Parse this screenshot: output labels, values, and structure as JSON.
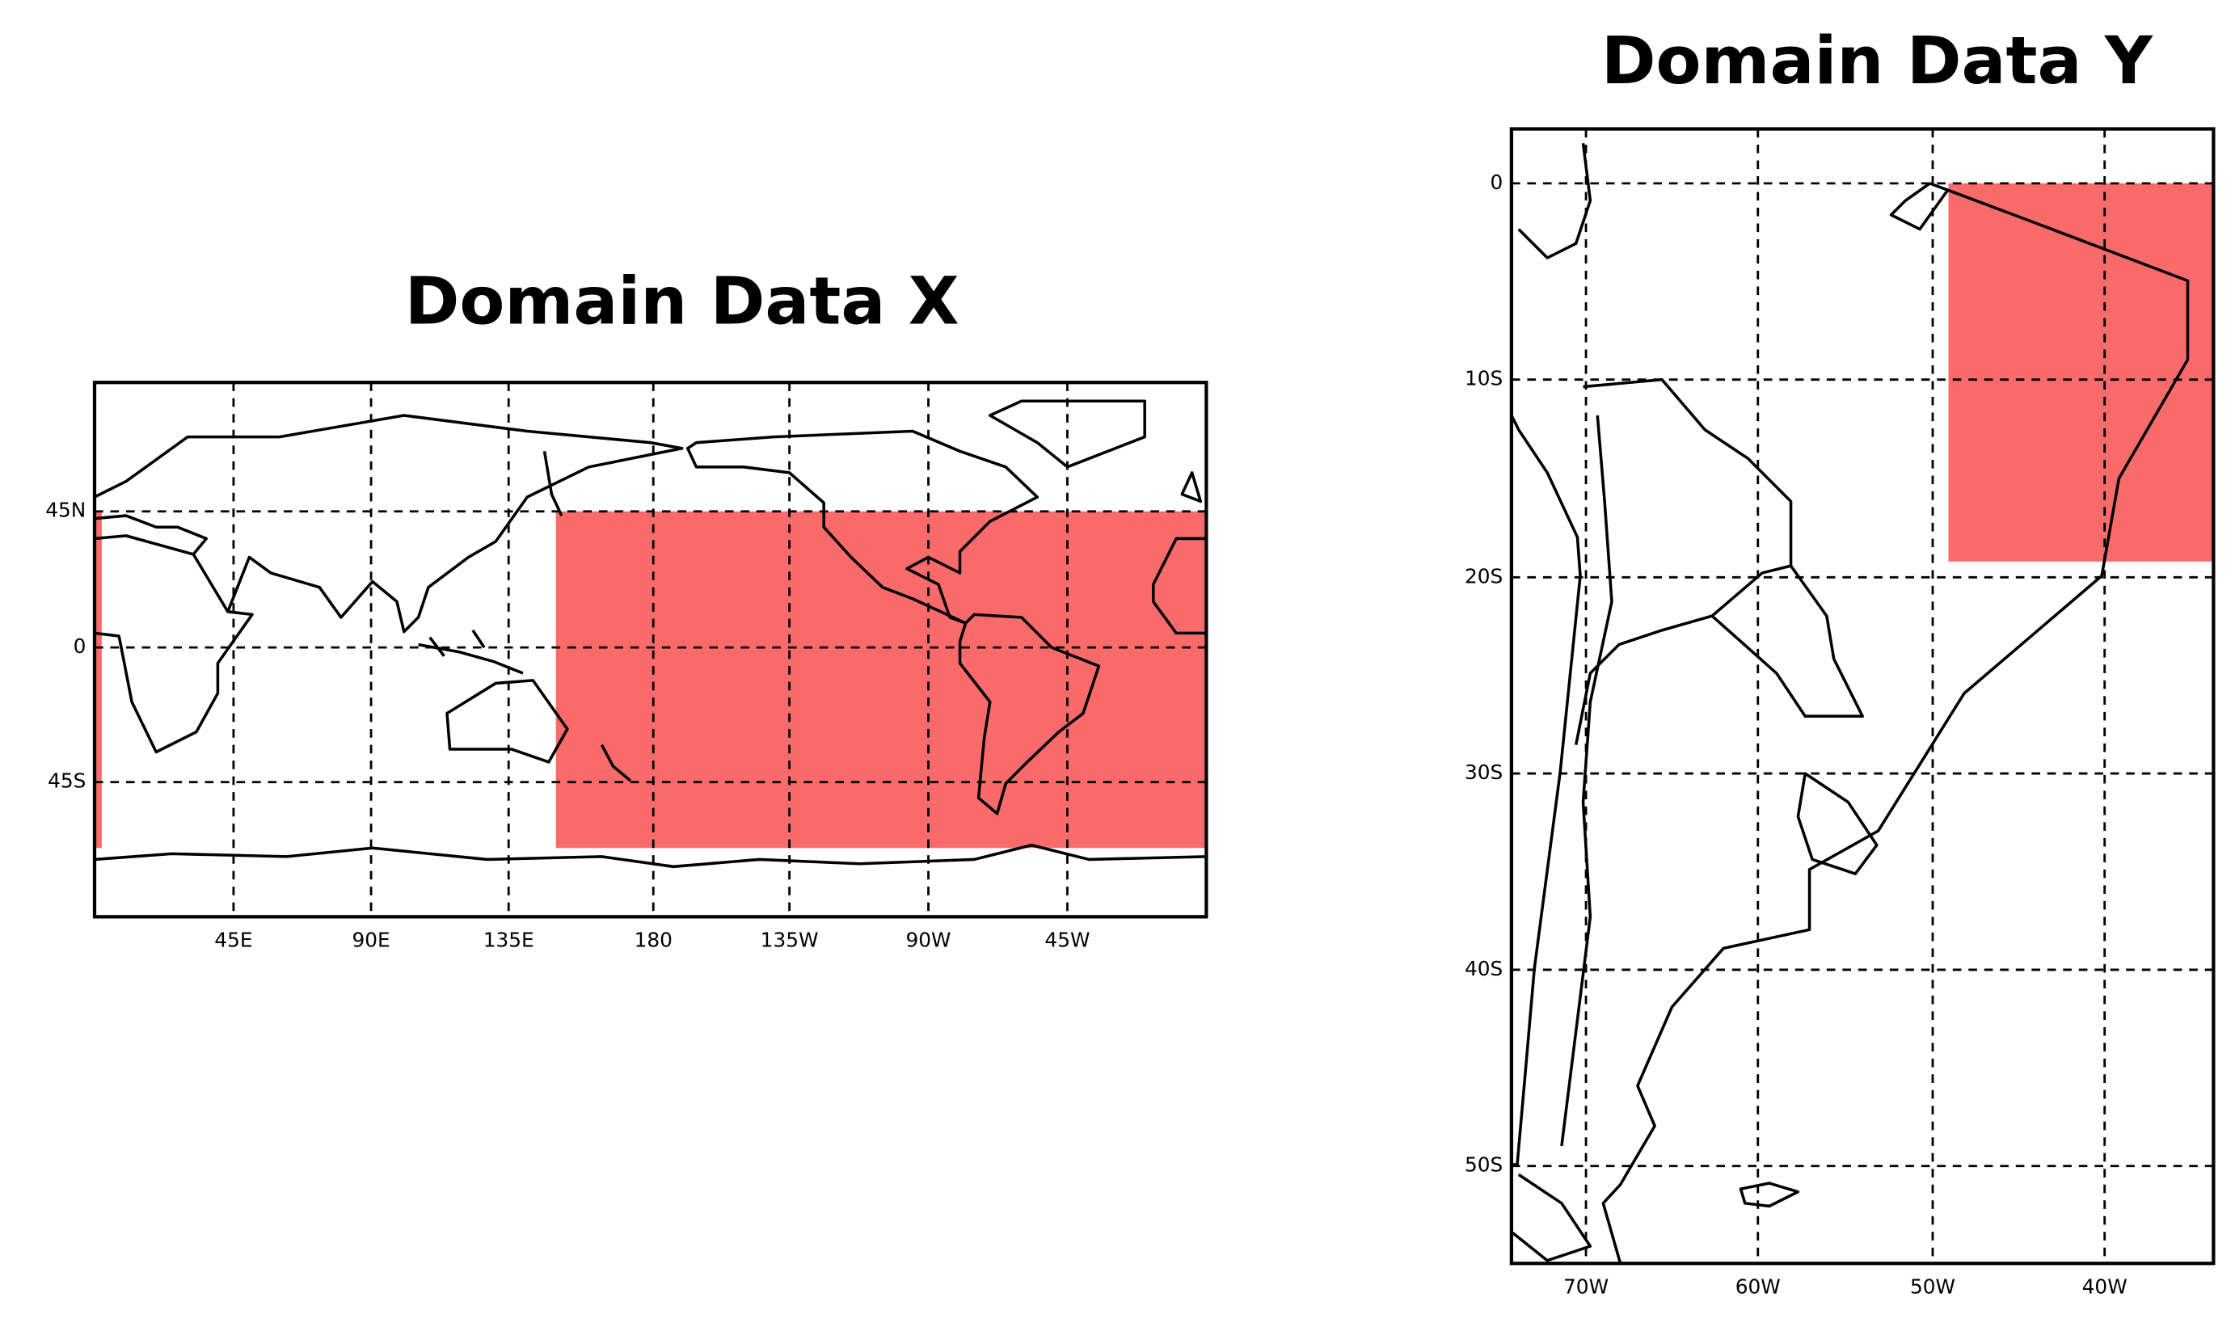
{
  "maps": [
    {
      "title": "Domain Data X",
      "x_labels": [
        "45E",
        "90E",
        "135E",
        "180",
        "135W",
        "90W",
        "45W"
      ],
      "y_labels": [
        "45N",
        "0",
        "45S"
      ]
    },
    {
      "title": "Domain Data Y",
      "x_labels": [
        "70W",
        "60W",
        "50W",
        "40W"
      ],
      "y_labels": [
        "0",
        "10S",
        "20S",
        "30S",
        "40S",
        "50S"
      ]
    }
  ]
}
